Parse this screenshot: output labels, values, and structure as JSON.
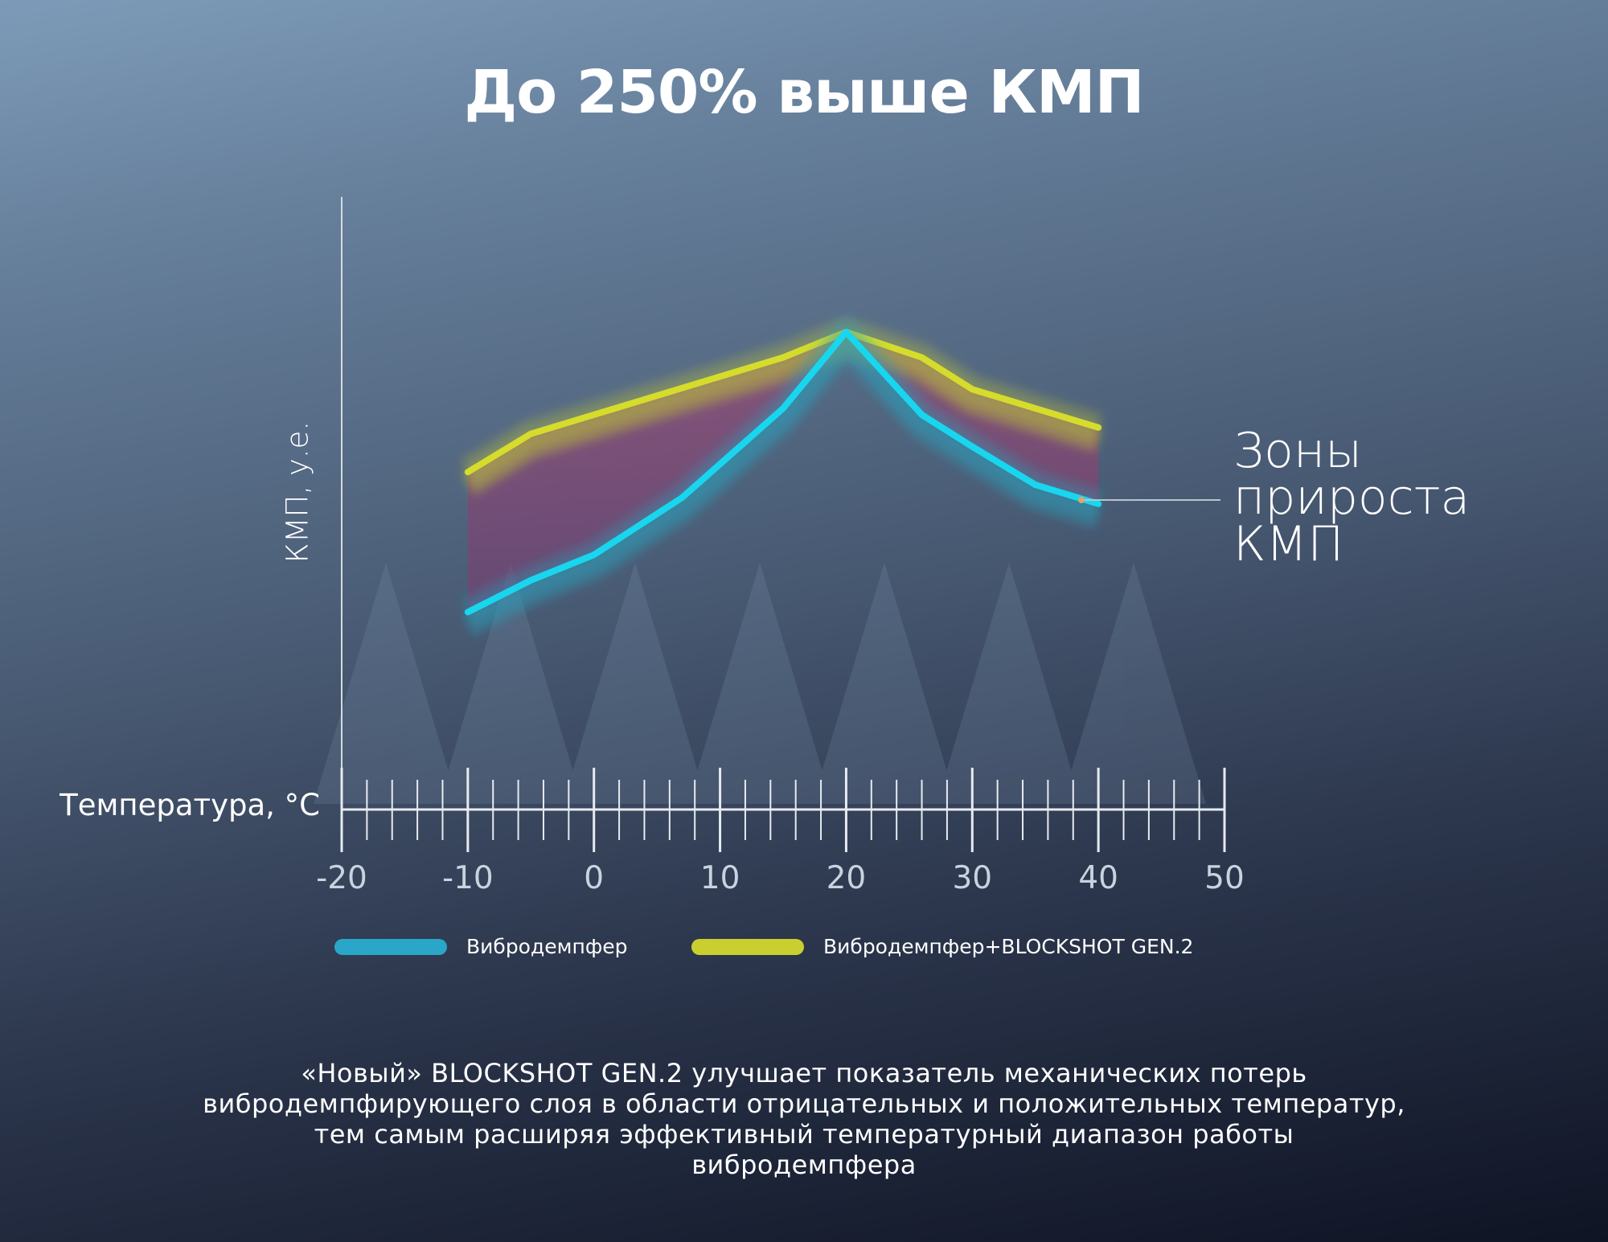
{
  "title": "До 250% выше КМП",
  "annotation": {
    "lines": [
      "Зоны",
      "прироста",
      "КМП"
    ]
  },
  "legend": [
    {
      "label": "Вибродемпфер",
      "color": "#2aa6c8"
    },
    {
      "label": "Вибродемпфер+BLOCKSHOT GEN.2",
      "color": "#c9cf2e"
    }
  ],
  "caption": {
    "lines": [
      "«Новый» BLOCKSHOT GEN.2 улучшает показатель механических потерь",
      "вибродемпфирующего слоя в области отрицательных и положительных температур,",
      "тем самым расширяя эффективный температурный диапазон работы",
      "вибродемпфера"
    ]
  },
  "chart_data": {
    "type": "line",
    "title": "До 250% выше КМП",
    "xlabel": "Температура, °C",
    "ylabel": "КМП, у.е.",
    "xlim": [
      -20,
      50
    ],
    "ylim": [
      0,
      10
    ],
    "x_ticks": [
      "-20",
      "-10",
      "0",
      "10",
      "20",
      "30",
      "40",
      "50"
    ],
    "x_tick_values": [
      -20,
      -10,
      0,
      10,
      20,
      30,
      40,
      50
    ],
    "grid": false,
    "legend_position": "bottom",
    "series": [
      {
        "name": "Вибродемпфер",
        "color": "#19d6ef",
        "x": [
          -10,
          -5,
          0,
          7,
          15,
          20,
          26,
          30,
          35,
          40
        ],
        "y": [
          3.1,
          3.6,
          4.0,
          4.9,
          6.3,
          7.5,
          6.2,
          5.7,
          5.1,
          4.8
        ]
      },
      {
        "name": "Вибродемпфер+BLOCKSHOT GEN.2",
        "color": "#d5dc2c",
        "x": [
          -10,
          -5,
          0,
          5,
          10,
          15,
          20,
          26,
          30,
          35,
          40
        ],
        "y": [
          5.3,
          5.9,
          6.2,
          6.5,
          6.8,
          7.1,
          7.5,
          7.1,
          6.6,
          6.3,
          6.0
        ]
      }
    ],
    "annotations": [
      "Зоны прироста КМП"
    ]
  }
}
